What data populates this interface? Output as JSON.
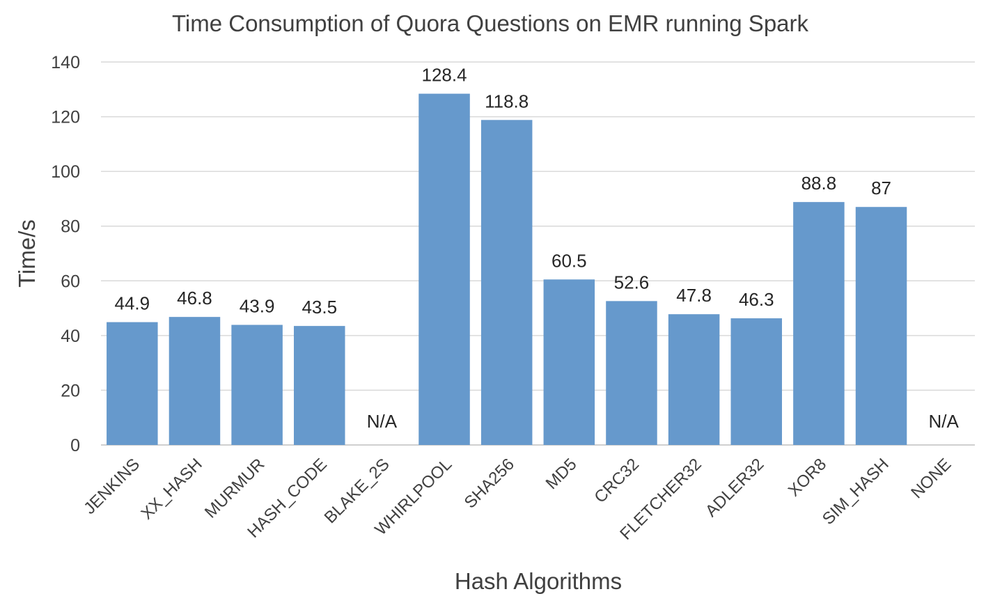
{
  "chart_data": {
    "type": "bar",
    "title": "Time Consumption of Quora Questions on EMR running Spark",
    "xlabel": "Hash Algorithms",
    "ylabel": "Time/s",
    "ylim": [
      0,
      140
    ],
    "yticks": [
      0,
      20,
      40,
      60,
      80,
      100,
      120,
      140
    ],
    "grid": true,
    "legend": "none",
    "bar_color": "#6699cc",
    "categories": [
      "JENKINS",
      "XX_HASH",
      "MURMUR",
      "HASH_CODE",
      "BLAKE_2S",
      "WHIRLPOOL",
      "SHA256",
      "MD5",
      "CRC32",
      "FLETCHER32",
      "ADLER32",
      "XOR8",
      "SIM_HASH",
      "NONE"
    ],
    "values": [
      44.9,
      46.8,
      43.9,
      43.5,
      null,
      128.4,
      118.8,
      60.5,
      52.6,
      47.8,
      46.3,
      88.8,
      87,
      null
    ],
    "data_labels": [
      "44.9",
      "46.8",
      "43.9",
      "43.5",
      "N/A",
      "128.4",
      "118.8",
      "60.5",
      "52.6",
      "47.8",
      "46.3",
      "88.8",
      "87",
      "N/A"
    ]
  }
}
